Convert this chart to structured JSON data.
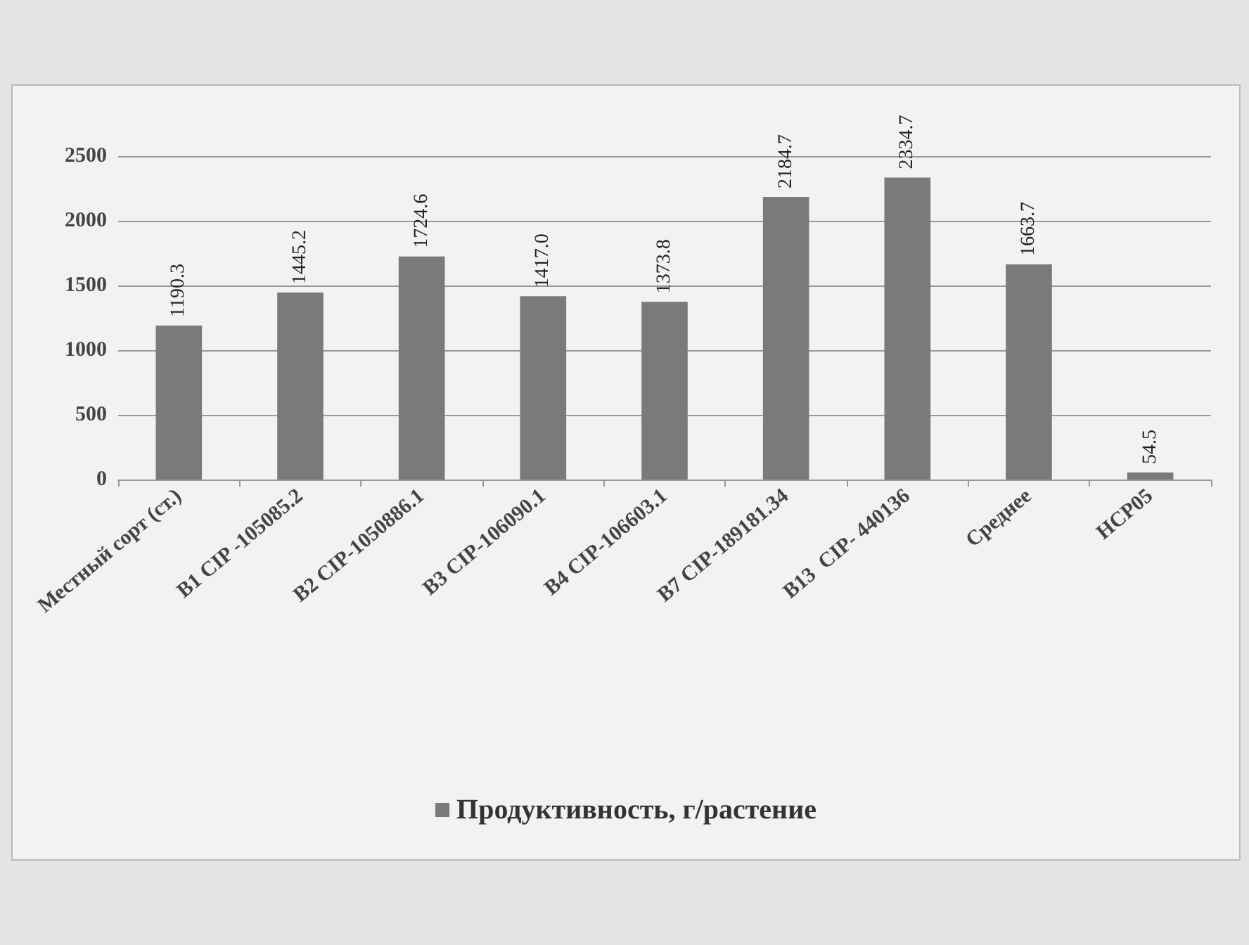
{
  "chart_data": {
    "type": "bar",
    "categories": [
      "Местный сорт (ст.)",
      "В1 CIP -105085.2",
      "В2 CIP-1050886.1",
      "В3 CIP-106090.1",
      "В4 CIP-106603.1",
      "В7 CIP-189181.34",
      "В13  CIP- 440136",
      "Среднее",
      "НСР05"
    ],
    "series": [
      {
        "name": "Продуктивность, г/растение",
        "color": "#7a7a7a",
        "values": [
          1190.3,
          1445.2,
          1724.6,
          1417.0,
          1373.8,
          2184.7,
          2334.7,
          1663.7,
          54.5
        ],
        "value_labels": [
          "1190.3",
          "1445.2",
          "1724.6",
          "1417.0",
          "1373.8",
          "2184.7",
          "2334.7",
          "1663.7",
          "54.5"
        ]
      }
    ],
    "ylim": [
      0,
      2500
    ],
    "yticks": [
      0,
      500,
      1000,
      1500,
      2000,
      2500
    ],
    "grid": "y",
    "legend": "bottom"
  }
}
